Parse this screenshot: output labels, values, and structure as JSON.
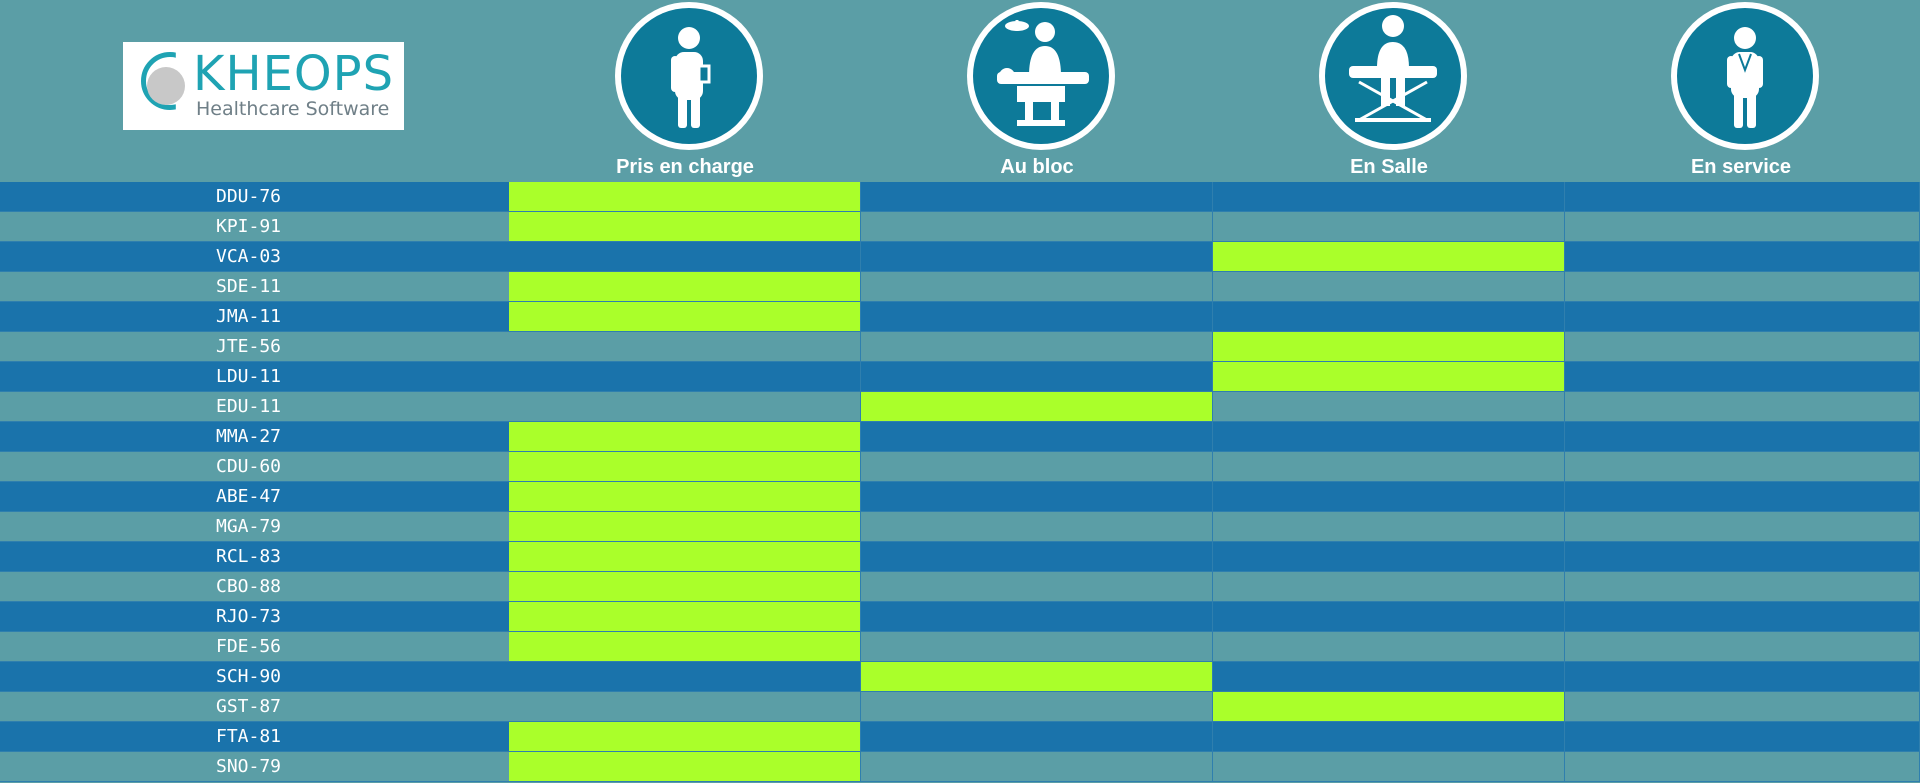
{
  "logo": {
    "brand": "KHEOPS",
    "tagline": "Healthcare Software"
  },
  "columns": [
    {
      "label": "Pris en charge",
      "icon": "doctor-icon"
    },
    {
      "label": "Au bloc",
      "icon": "surgery-icon"
    },
    {
      "label": "En Salle",
      "icon": "patient-seated-icon"
    },
    {
      "label": "En service",
      "icon": "nurse-icon"
    }
  ],
  "colors": {
    "background": "#5b9ea6",
    "row_dark": "#1a73ab",
    "row_light": "#5b9ea6",
    "active": "#aaff2a",
    "icon_circle": "#0d7a99"
  },
  "rows": [
    {
      "code": "DDU-76",
      "status": 0
    },
    {
      "code": "KPI-91",
      "status": 0
    },
    {
      "code": "VCA-03",
      "status": 2
    },
    {
      "code": "SDE-11",
      "status": 0
    },
    {
      "code": "JMA-11",
      "status": 0
    },
    {
      "code": "JTE-56",
      "status": 2
    },
    {
      "code": "LDU-11",
      "status": 2
    },
    {
      "code": "EDU-11",
      "status": 1
    },
    {
      "code": "MMA-27",
      "status": 0
    },
    {
      "code": "CDU-60",
      "status": 0
    },
    {
      "code": "ABE-47",
      "status": 0
    },
    {
      "code": "MGA-79",
      "status": 0
    },
    {
      "code": "RCL-83",
      "status": 0
    },
    {
      "code": "CBO-88",
      "status": 0
    },
    {
      "code": "RJO-73",
      "status": 0
    },
    {
      "code": "FDE-56",
      "status": 0
    },
    {
      "code": "SCH-90",
      "status": 1
    },
    {
      "code": "GST-87",
      "status": 2
    },
    {
      "code": "FTA-81",
      "status": 0
    },
    {
      "code": "SNO-79",
      "status": 0
    }
  ]
}
